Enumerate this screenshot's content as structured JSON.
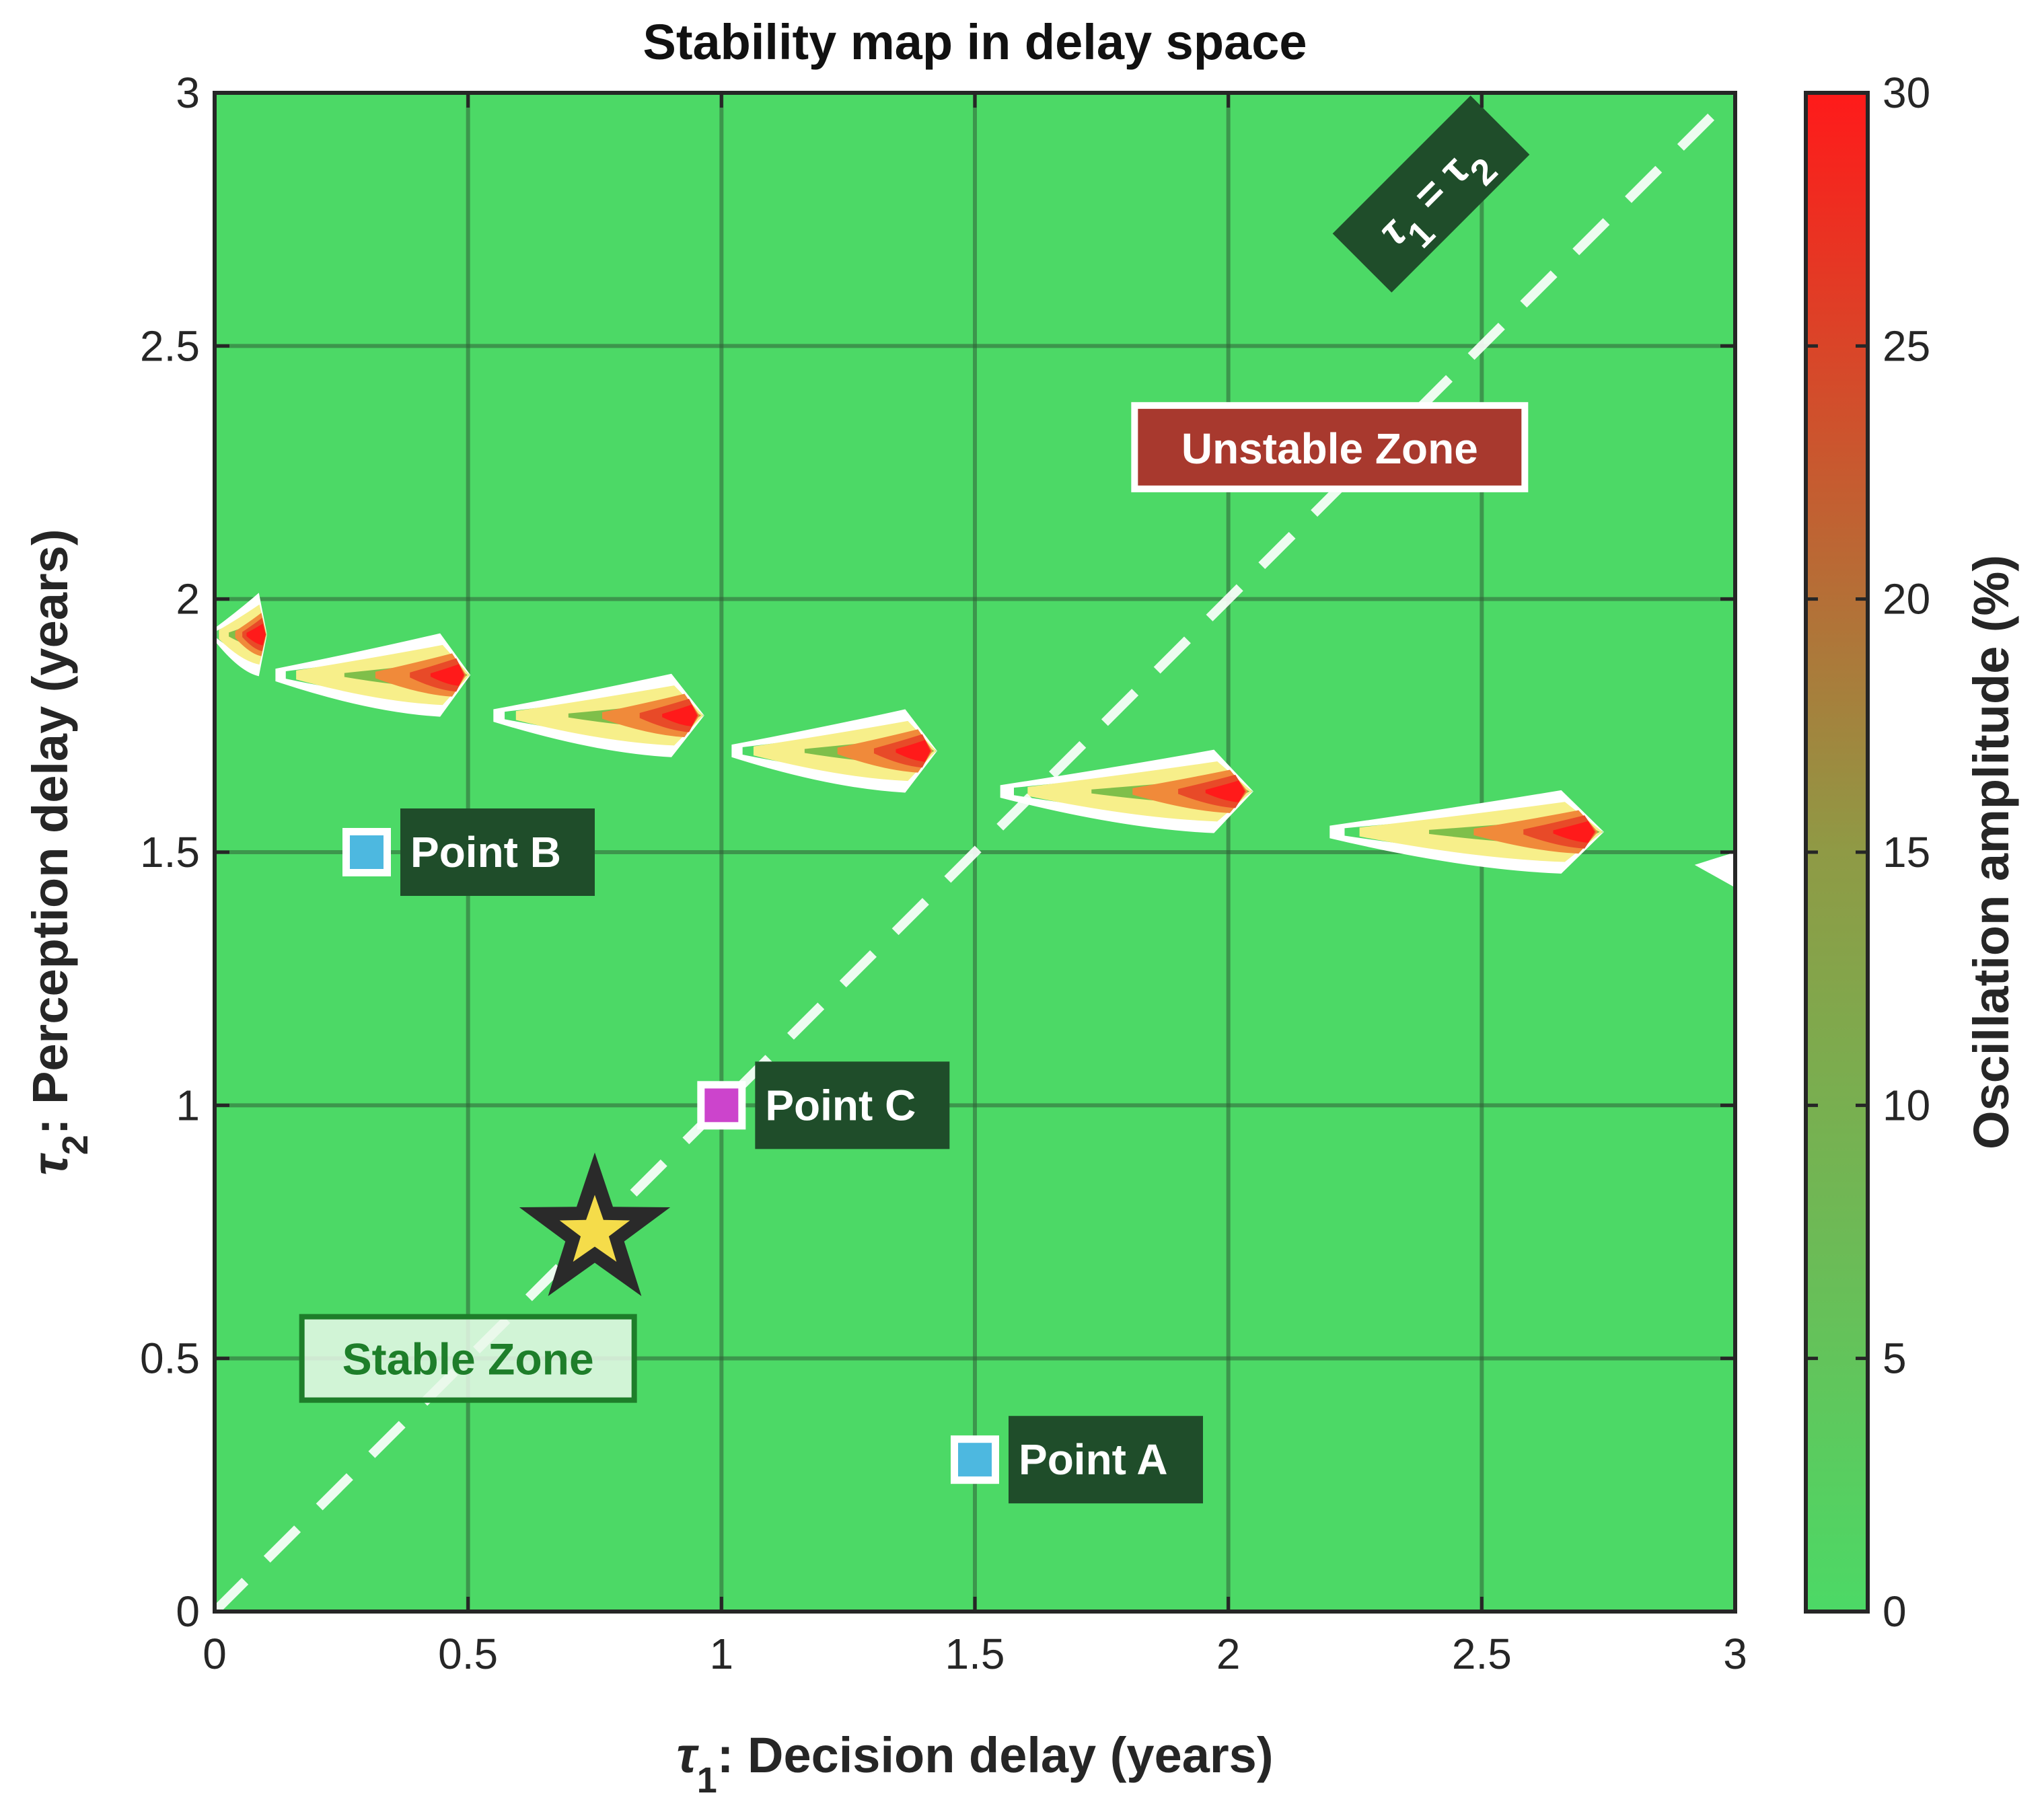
{
  "chart_data": {
    "type": "heatmap",
    "title": "Stability map in delay space",
    "xlabel": "τ_1: Decision delay (years)",
    "ylabel": "τ_2: Perception delay (years)",
    "colorbar_label": "Oscillation amplitude (%)",
    "xlim": [
      0,
      3
    ],
    "ylim": [
      0,
      3
    ],
    "clim": [
      0,
      30
    ],
    "x_ticks": [
      "0",
      "0.5",
      "1",
      "1.5",
      "2",
      "2.5",
      "3"
    ],
    "y_ticks": [
      "0",
      "0.5",
      "1",
      "1.5",
      "2",
      "2.5",
      "3"
    ],
    "colorbar_ticks": [
      "0",
      "5",
      "10",
      "15",
      "20",
      "25",
      "30"
    ],
    "grid": true,
    "colormap": {
      "low": "#4cd966",
      "high": "#ff1a1a"
    },
    "unstable_lobes": [
      {
        "x_peak": 0.07,
        "y_peak": 1.93,
        "x_start": 0.0,
        "amplitude": 30
      },
      {
        "x_peak": 0.46,
        "y_peak": 1.85,
        "x_start": 0.12,
        "amplitude": 28
      },
      {
        "x_peak": 0.92,
        "y_peak": 1.77,
        "x_start": 0.55,
        "amplitude": 27
      },
      {
        "x_peak": 1.38,
        "y_peak": 1.7,
        "x_start": 1.02,
        "amplitude": 25
      },
      {
        "x_peak": 2.0,
        "y_peak": 1.62,
        "x_start": 1.55,
        "amplitude": 25
      },
      {
        "x_peak": 2.69,
        "y_peak": 1.54,
        "x_start": 2.2,
        "amplitude": 24
      }
    ],
    "lines": [
      {
        "label": "τ_1 = τ_2",
        "x": [
          0,
          3
        ],
        "y": [
          0,
          3
        ],
        "style": "dashed",
        "color": "#ffffff"
      }
    ],
    "points": [
      {
        "label": "Point A",
        "x": 1.5,
        "y": 0.3,
        "color": "#4db8e0"
      },
      {
        "label": "Point B",
        "x": 0.3,
        "y": 1.5,
        "color": "#4db8e0"
      },
      {
        "label": "Point C",
        "x": 1.0,
        "y": 1.0,
        "color": "#cc44cc"
      }
    ],
    "star": {
      "x": 0.75,
      "y": 0.75,
      "fill": "#f5dc4a",
      "edge": "#2a2a2a"
    },
    "zone_labels": [
      {
        "text": "Unstable Zone",
        "x": 2.2,
        "y": 2.3,
        "style": "white on red"
      },
      {
        "text": "Stable Zone",
        "x": 0.5,
        "y": 0.5,
        "style": "green on white"
      }
    ]
  }
}
